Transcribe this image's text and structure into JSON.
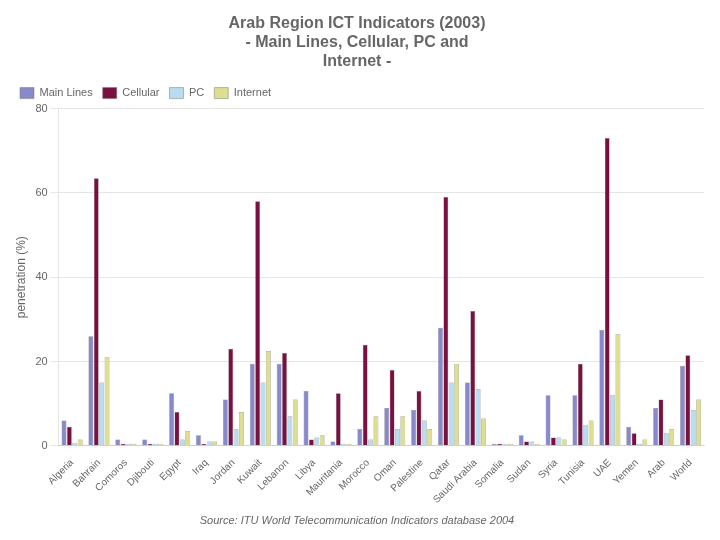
{
  "chart_data": {
    "type": "bar",
    "title": [
      "Arab Region ICT Indicators (2003)",
      "- Main Lines, Cellular, PC and",
      "Internet -"
    ],
    "ylabel": "penetration (%)",
    "annotation": "Source: ITU World Telecommunication Indicators database 2004",
    "categories": [
      "Algeria",
      "Bahrain",
      "Comoros",
      "Djibouti",
      "Egypt",
      "Iraq",
      "Jordan",
      "Kuwait",
      "Lebanon",
      "Libya",
      "Mauritania",
      "Morocco",
      "Oman",
      "Palestine",
      "Qatar",
      "Saudi Arabia",
      "Somalia",
      "Sudan",
      "Syria",
      "Tunisia",
      "UAE",
      "Yemen",
      "Arab",
      "World"
    ],
    "series": [
      {
        "name": "Main Lines",
        "color": "#8888cc",
        "values": [
          6.0,
          26.0,
          1.5,
          1.5,
          12.5,
          2.5,
          11.0,
          19.5,
          19.5,
          13.0,
          1.0,
          4.0,
          9.0,
          8.5,
          28.0,
          15.0,
          0.5,
          2.5,
          12.0,
          12.0,
          27.5,
          4.5,
          9.0,
          19.0
        ]
      },
      {
        "name": "Cellular",
        "color": "#7a1040",
        "values": [
          4.5,
          63.5,
          0.5,
          0.5,
          8.0,
          0.5,
          23.0,
          58.0,
          22.0,
          1.5,
          12.5,
          24.0,
          18.0,
          13.0,
          59.0,
          32.0,
          0.5,
          1.0,
          2.0,
          19.5,
          73.0,
          3.0,
          11.0,
          21.5
        ]
      },
      {
        "name": "PC",
        "color": "#b8ddf0",
        "values": [
          0.7,
          15.0,
          0.5,
          0.5,
          1.5,
          1.0,
          4.0,
          15.0,
          7.0,
          2.0,
          0.5,
          1.5,
          4.0,
          6.0,
          15.0,
          13.5,
          0.5,
          1.0,
          2.0,
          5.0,
          12.0,
          0.5,
          3.0,
          8.5
        ]
      },
      {
        "name": "Internet",
        "color": "#dede90",
        "values": [
          1.5,
          21.0,
          0.5,
          0.5,
          3.5,
          1.0,
          8.0,
          22.5,
          11.0,
          2.5,
          0.5,
          7.0,
          7.0,
          4.0,
          19.5,
          6.5,
          0.5,
          0.5,
          1.5,
          6.0,
          26.5,
          1.5,
          4.0,
          11.0
        ]
      }
    ],
    "ylim": [
      0,
      80
    ],
    "yticks": [
      0,
      20,
      40,
      60,
      80
    ],
    "grid": true,
    "legend": "upper left"
  }
}
